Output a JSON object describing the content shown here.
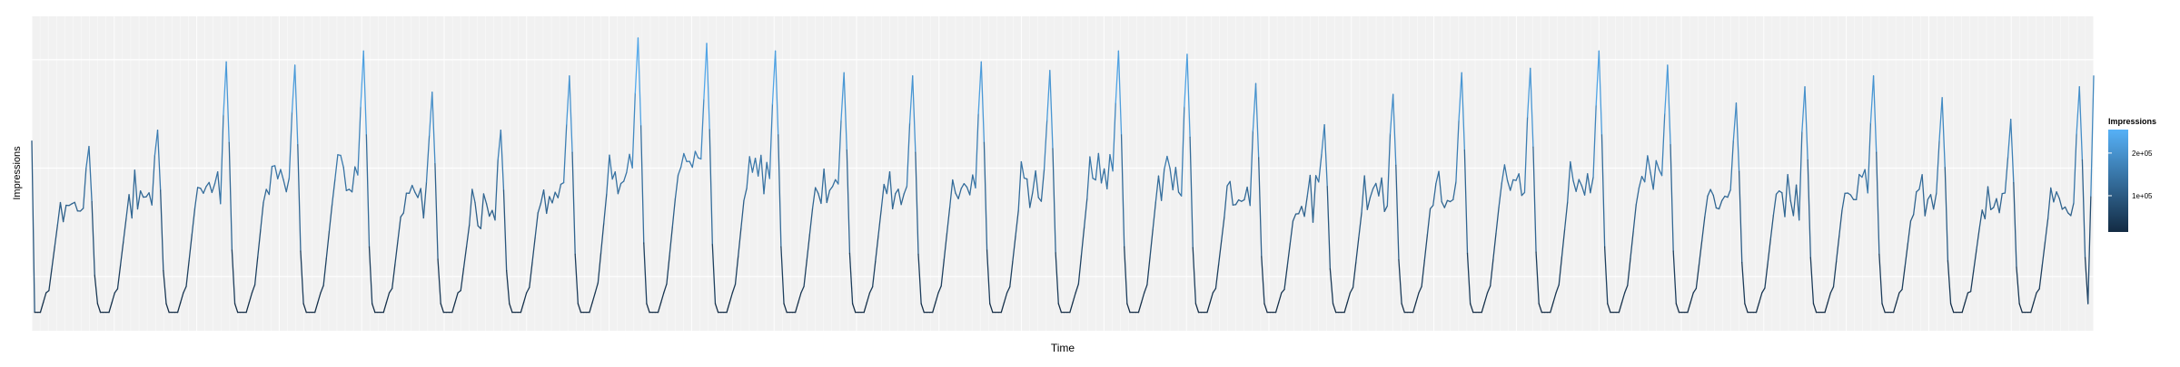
{
  "chart_data": {
    "type": "line",
    "title": "",
    "xlabel": "Time",
    "ylabel": "Impressions",
    "x_tick_labels": [],
    "y_tick_labels": [],
    "grid": true,
    "legend": {
      "title": "Impressions",
      "placement": "right",
      "kind": "colorbar",
      "ticks": [
        {
          "value": 100000,
          "label": "1e+05"
        },
        {
          "value": 200000,
          "label": "2e+05"
        }
      ],
      "range": [
        15000,
        255000
      ],
      "colors": {
        "low": "#132B43",
        "high": "#56B1F7"
      }
    },
    "ylim": [
      0,
      290000
    ],
    "series": [
      {
        "color_scale": [
          "#132B43",
          "#56B1F7"
        ],
        "day_profile": {
          "note_hours": "periodic daily cycle, ~30 days shown, x = 0..720 hourly observations",
          "trough": 17000,
          "peaks_per_day": [
            170000,
            185000,
            248000,
            245000,
            258000,
            220000,
            185000,
            235000,
            270000,
            265000,
            258000,
            238000,
            235000,
            248000,
            240000,
            258000,
            255000,
            228000,
            190000,
            218000,
            238000,
            242000,
            258000,
            245000,
            210000,
            225000,
            235000,
            215000,
            195000,
            225000
          ],
          "day_levels": [
            130000,
            138000,
            150000,
            158000,
            155000,
            140000,
            130000,
            145000,
            168000,
            162000,
            160000,
            150000,
            148000,
            152000,
            148000,
            162000,
            158000,
            140000,
            135000,
            145000,
            150000,
            152000,
            158000,
            155000,
            140000,
            142000,
            148000,
            135000,
            125000,
            138000
          ]
        }
      }
    ]
  }
}
